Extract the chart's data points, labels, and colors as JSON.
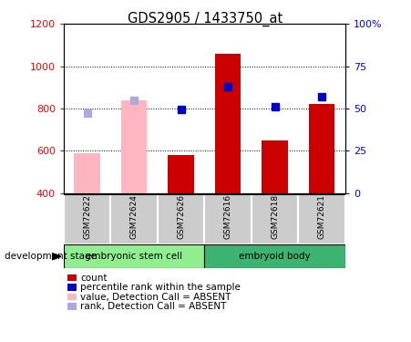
{
  "title": "GDS2905 / 1433750_at",
  "samples": [
    "GSM72622",
    "GSM72624",
    "GSM72626",
    "GSM72616",
    "GSM72618",
    "GSM72621"
  ],
  "count_values": [
    590,
    840,
    580,
    1060,
    650,
    820
  ],
  "rank_values": [
    780,
    840,
    795,
    905,
    810,
    855
  ],
  "absent_mask": [
    true,
    true,
    false,
    false,
    false,
    false
  ],
  "ylim_left": [
    400,
    1200
  ],
  "ylim_right": [
    0,
    100
  ],
  "yticks_left": [
    400,
    600,
    800,
    1000,
    1200
  ],
  "yticks_right": [
    0,
    25,
    50,
    75,
    100
  ],
  "groups": [
    {
      "label": "embryonic stem cell",
      "start": 0,
      "end": 3,
      "color": "#90EE90"
    },
    {
      "label": "embryoid body",
      "start": 3,
      "end": 6,
      "color": "#3CB371"
    }
  ],
  "group_label": "development stage",
  "bar_color_present": "#CC0000",
  "bar_color_absent": "#FFB6C1",
  "rank_color_present": "#0000CC",
  "rank_color_absent": "#AAAADD",
  "legend_items": [
    {
      "label": "count",
      "color": "#CC0000"
    },
    {
      "label": "percentile rank within the sample",
      "color": "#0000CC"
    },
    {
      "label": "value, Detection Call = ABSENT",
      "color": "#FFB6C1"
    },
    {
      "label": "rank, Detection Call = ABSENT",
      "color": "#AAAADD"
    }
  ]
}
